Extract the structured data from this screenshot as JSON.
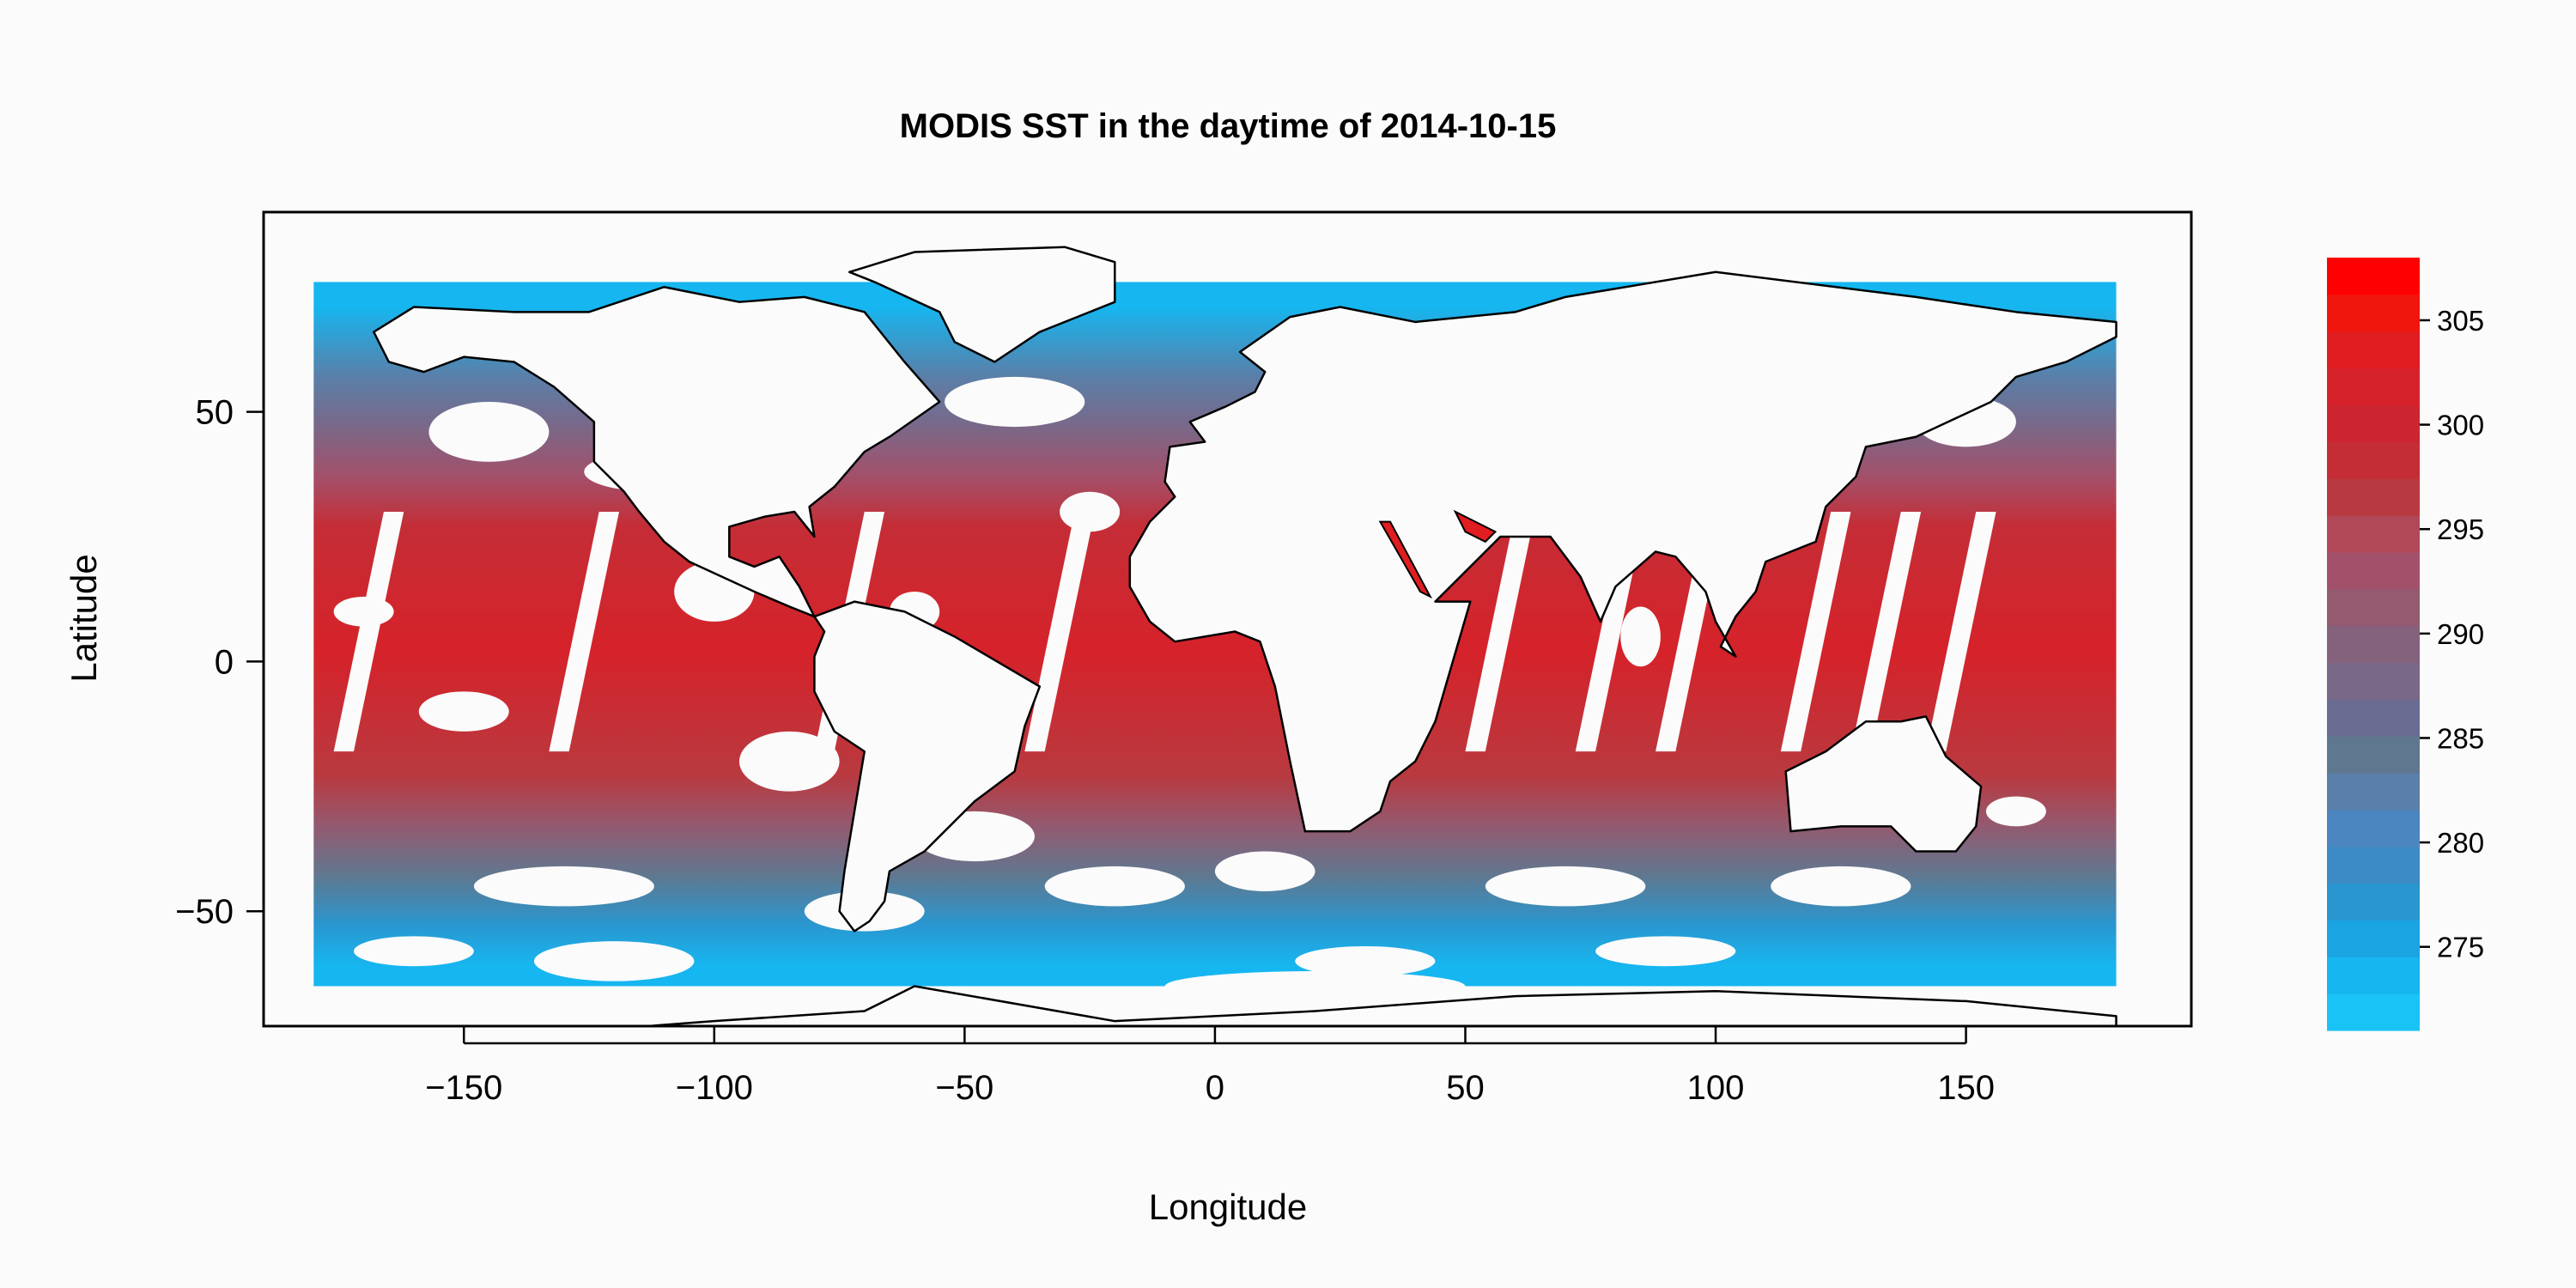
{
  "chart_data": {
    "type": "heatmap",
    "title": "MODIS SST in the daytime of 2014-10-15",
    "xlabel": "Longitude",
    "ylabel": "Latitude",
    "xlim": [
      -190,
      195
    ],
    "ylim": [
      -73,
      90
    ],
    "x_ticks": [
      -150,
      -100,
      -50,
      0,
      50,
      100,
      150
    ],
    "y_ticks": [
      -50,
      0,
      50
    ],
    "colorbar": {
      "range": [
        271,
        308
      ],
      "ticks": [
        275,
        280,
        285,
        290,
        295,
        300,
        305
      ],
      "colors": [
        "#19c3f5",
        "#16b6f0",
        "#1aa4e2",
        "#2a96cf",
        "#3c8bc4",
        "#4c86c0",
        "#5a7fa8",
        "#5f7890",
        "#6a6c92",
        "#7a6888",
        "#84627c",
        "#935a70",
        "#a3506a",
        "#b04858",
        "#b83a40",
        "#c52d36",
        "#cc2530",
        "#d6222a",
        "#e01d20",
        "#f0160e",
        "#ff0000"
      ]
    },
    "bands": [
      {
        "lat_min": -65,
        "lat_max": -57,
        "value": 273
      },
      {
        "lat_min": -57,
        "lat_max": -48,
        "value": 278
      },
      {
        "lat_min": -48,
        "lat_max": -38,
        "value": 285
      },
      {
        "lat_min": -38,
        "lat_max": -28,
        "value": 291
      },
      {
        "lat_min": -28,
        "lat_max": -18,
        "value": 296
      },
      {
        "lat_min": -18,
        "lat_max": 22,
        "value": 301
      },
      {
        "lat_min": 22,
        "lat_max": 32,
        "value": 298
      },
      {
        "lat_min": 32,
        "lat_max": 42,
        "value": 293
      },
      {
        "lat_min": 42,
        "lat_max": 52,
        "value": 288
      },
      {
        "lat_min": 52,
        "lat_max": 62,
        "value": 282
      },
      {
        "lat_min": 62,
        "lat_max": 80,
        "value": 274
      }
    ],
    "grid": false
  }
}
